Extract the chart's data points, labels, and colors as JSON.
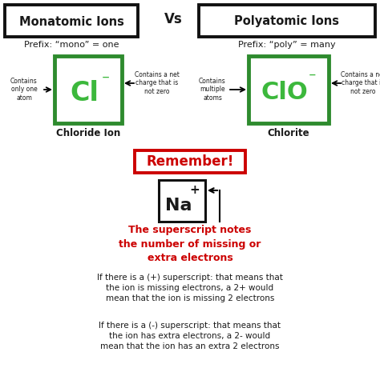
{
  "bg_color": "#ffffff",
  "title_mono": "Monatomic Ions",
  "title_poly": "Polyatomic Ions",
  "vs_text": "Vs",
  "prefix_mono": "Prefix: “mono” = one",
  "prefix_poly": "Prefix: “poly” = many",
  "ion_cl": "Cl",
  "ion_cl_charge": "⁻",
  "ion_clo": "ClO",
  "ion_clo_charge": "⁻",
  "label_cl": "Chloride Ion",
  "label_clo": "Chlorite",
  "arrow_left1": "Contains\nonly one\natom",
  "arrow_right1": "Contains a net\ncharge that is\nnot zero",
  "arrow_left2": "Contains\nmultiple\natoms",
  "arrow_right2": "Contains a net\ncharge that is\nnot zero",
  "remember_text": "Remember!",
  "na_symbol": "Na",
  "na_charge": "+",
  "superscript_note": "The superscript notes\nthe number of missing or\nextra electrons",
  "plus_note": "If there is a (+) superscript: that means that\nthe ion is missing electrons, a 2+ would\nmean that the ion is missing 2 electrons",
  "minus_note": "If there is a (-) superscript: that means that\nthe ion has extra electrons, a 2- would\nmean that the ion has an extra 2 electrons",
  "green_border": "#2e8b2e",
  "black_border": "#111111",
  "red_color": "#cc0000",
  "green_ion_color": "#3cb83c",
  "dark_text": "#1a1a1a",
  "figw": 4.74,
  "figh": 4.8,
  "dpi": 100
}
